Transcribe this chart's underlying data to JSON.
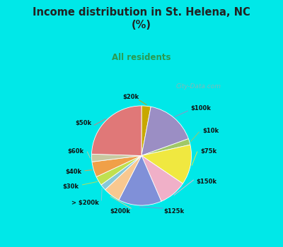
{
  "title": "Income distribution in St. Helena, NC\n(%)",
  "subtitle": "All residents",
  "labels": [
    "$20k",
    "$100k",
    "$10k",
    "$75k",
    "$150k",
    "$125k",
    "$200k",
    "> $200k",
    "$30k",
    "$40k",
    "$60k",
    "$50k"
  ],
  "values": [
    3.0,
    16.5,
    2.0,
    13.0,
    9.0,
    14.0,
    5.5,
    2.0,
    3.0,
    5.0,
    2.5,
    24.5
  ],
  "colors": [
    "#c8a800",
    "#9b8ec4",
    "#a0c868",
    "#f0e840",
    "#f0b0c8",
    "#8090d8",
    "#f8c890",
    "#88c8d8",
    "#c0e050",
    "#f0a048",
    "#c8c8a0",
    "#e07878"
  ],
  "line_colors": [
    "#c8a800",
    "#9b8ec4",
    "#a0c868",
    "#f0e840",
    "#f8b0d0",
    "#8090d8",
    "#f8c890",
    "#88c8d8",
    "#c0e050",
    "#f0a048",
    "#c8c8a0",
    "#e07878"
  ],
  "outer_bg": "#00e8e8",
  "inner_bg_top": "#e0f8f0",
  "inner_bg_bot": "#c8eee8",
  "title_color": "#222222",
  "subtitle_color": "#2a9a50",
  "watermark": "City-Data.com"
}
